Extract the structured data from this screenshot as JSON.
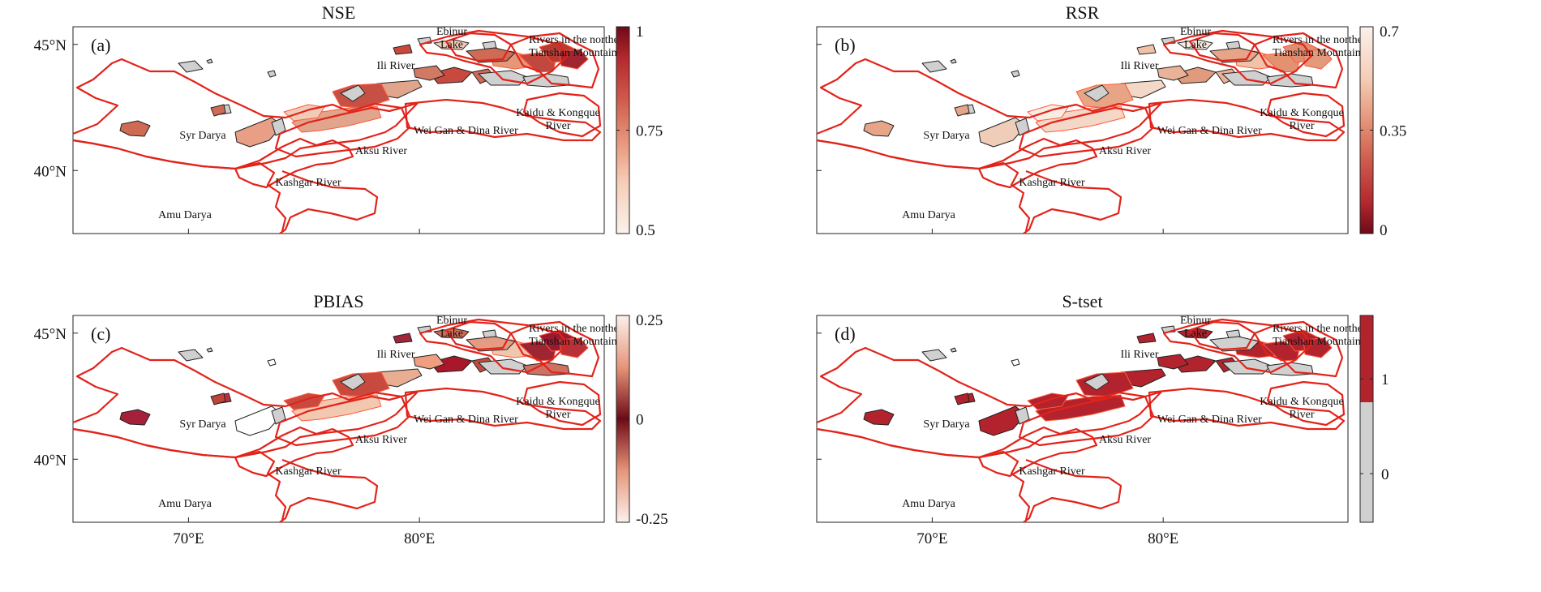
{
  "colors": {
    "boundary": "#e2231a",
    "grey": "#d0d0d0",
    "ramp": [
      "#fbf1ec",
      "#f5cdb6",
      "#e6957a",
      "#cf5a4c",
      "#b3282e",
      "#6e0a17"
    ]
  },
  "axes": {
    "lat_labels": [
      "45°N",
      "40°N"
    ],
    "lon_labels": [
      "70°E",
      "80°E"
    ]
  },
  "place_labels": {
    "ebinur": [
      "Ebinur",
      "Lake"
    ],
    "northern": [
      "Rivers in the northern",
      "Tianshan Mountains"
    ],
    "ili": "Ili River",
    "kaidu": [
      "Kaidu & Kongque",
      "River"
    ],
    "syr": "Syr Darya",
    "weigan": "Wei Gan & Dina River",
    "aksu": "Aksu River",
    "kashgar": "Kashgar River",
    "amu": "Amu Darya"
  },
  "panels": [
    {
      "title": "NSE",
      "tag": "(a)",
      "colorbar": {
        "type": "continuous",
        "ramp": "light-to-dark",
        "ticks": [
          "1",
          "0.75",
          "0.5"
        ],
        "range": [
          0.5,
          1
        ]
      },
      "fills": [
        "#d0d0d0",
        "#d0d0d0",
        "#d0d0d0",
        "#e0a58c",
        "#d0d0d0",
        "#d0d0d0",
        "#d0d0d0",
        "#c65044",
        "#e0a58c",
        "#e89f85",
        "#cf6a55",
        "#cf6a55",
        "#d0d0d0",
        "#f0cbb7",
        "#c84a3e",
        "#cf6a55",
        "#f0cbb7",
        "#d0d0d0",
        "#e49878",
        "#c2473e",
        "#d07a64",
        "#cf6a55",
        "#d0d0d0",
        "#d0d0d0",
        "#b83a33",
        "#9f2530",
        "#c84a3e"
      ]
    },
    {
      "title": "RSR",
      "tag": "(b)",
      "colorbar": {
        "type": "continuous",
        "ramp": "dark-to-light",
        "ticks": [
          "0.7",
          "0.35",
          "0"
        ],
        "range": [
          0,
          0.7
        ]
      },
      "fills": [
        "#d0d0d0",
        "#d0d0d0",
        "#d0d0d0",
        "#f3d7c7",
        "#d0d0d0",
        "#d0d0d0",
        "#d0d0d0",
        "#e7a585",
        "#f3d7c7",
        "#f0cdb9",
        "#e6a488",
        "#e6a488",
        "#d0d0d0",
        "#f9ece3",
        "#e19a7c",
        "#ebb29a",
        "#f9ece3",
        "#d0d0d0",
        "#f0c2a8",
        "#e29270",
        "#eab397",
        "#e6a488",
        "#d0d0d0",
        "#d0d0d0",
        "#de8e71",
        "#e39a7c",
        "#f0c2a8"
      ]
    },
    {
      "title": "PBIAS",
      "tag": "(c)",
      "colorbar": {
        "type": "diverging",
        "ticks": [
          "0.25",
          "0",
          "-0.25"
        ],
        "range": [
          -0.25,
          0.25
        ]
      },
      "fills": [
        "#d0d0d0",
        "#d0d0d0",
        "#d0d0d0",
        "#e9ae92",
        "#b8323a",
        "#ffffff",
        "#d0d0d0",
        "#c84a3e",
        "#f3c8b0",
        "#ffffff",
        "#a5213a",
        "#c04238",
        "#d0d0d0",
        "#c84a3e",
        "#a8182a",
        "#c54a3e",
        "#cd6b55",
        "#d0d0d0",
        "#f0c6ad",
        "#9f2532",
        "#ef9e80",
        "#e59b82",
        "#d07060",
        "#d0d0d0",
        "#9b1a31",
        "#b83038",
        "#a2263a"
      ]
    },
    {
      "title": "S-tset",
      "tag": "(d)",
      "colorbar": {
        "type": "binary",
        "ticks": [
          "1",
          "0"
        ],
        "classes": [
          "0",
          "1"
        ]
      },
      "fills": [
        "#d0d0d0",
        "#d0d0d0",
        "#d0d0d0",
        "#b3232d",
        "#b3232d",
        "#ffffff",
        "#d0d0d0",
        "#b3232d",
        "#b3232d",
        "#b3232d",
        "#b3232d",
        "#b3232d",
        "#d0d0d0",
        "#b3232d",
        "#b3232d",
        "#b3232d",
        "#b3232d",
        "#d0d0d0",
        "#b3232d",
        "#b3232d",
        "#b3232d",
        "#d0d0d0",
        "#d0d0d0",
        "#d0d0d0",
        "#b3232d",
        "#b3232d",
        "#b3232d"
      ]
    }
  ]
}
